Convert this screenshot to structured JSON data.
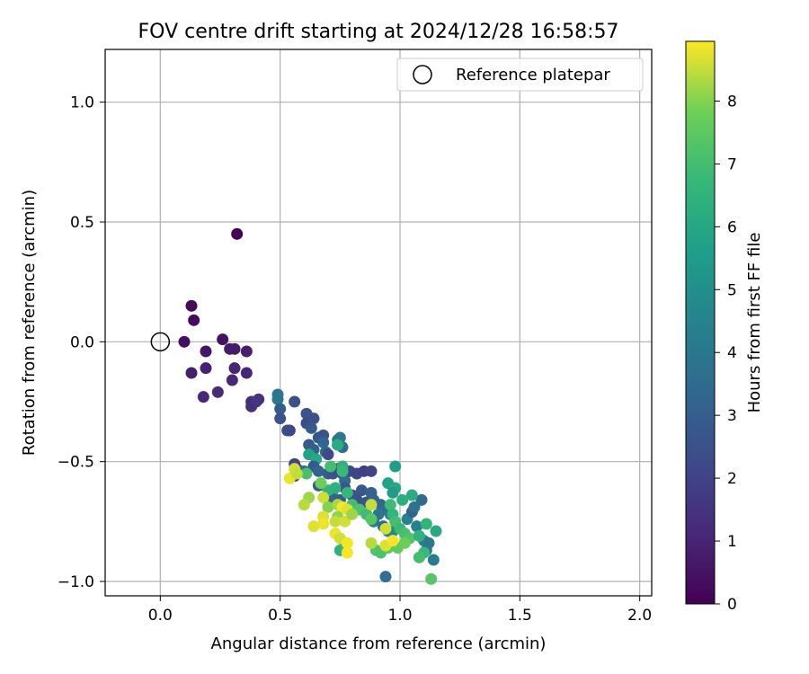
{
  "chart_data": {
    "type": "scatter",
    "title": "FOV centre drift starting at 2024/12/28 16:58:57",
    "xlabel": "Angular distance from reference (arcmin)",
    "ylabel": "Rotation from reference (arcmin)",
    "xlim": [
      -0.23,
      2.05
    ],
    "ylim": [
      -1.06,
      1.22
    ],
    "x_ticks": [
      0.0,
      0.5,
      1.0,
      1.5,
      2.0
    ],
    "x_tick_labels": [
      "0.0",
      "0.5",
      "1.0",
      "1.5",
      "2.0"
    ],
    "y_ticks": [
      1.0,
      0.5,
      0.0,
      -0.5,
      -1.0
    ],
    "y_tick_labels": [
      "1.0",
      "0.5",
      "0.0",
      "−0.5",
      "−1.0"
    ],
    "grid": true,
    "legend": {
      "position": "top-right",
      "label": "Reference platepar"
    },
    "reference_point": {
      "x": 0.0,
      "y": 0.0
    },
    "colorbar": {
      "label": "Hours from first FF file",
      "range": [
        0,
        8.95
      ],
      "ticks": [
        0,
        1,
        2,
        3,
        4,
        5,
        6,
        7,
        8
      ],
      "tick_labels": [
        "0",
        "1",
        "2",
        "3",
        "4",
        "5",
        "6",
        "7",
        "8"
      ],
      "colormap": "viridis"
    },
    "series": [
      {
        "points": [
          [
            0.32,
            0.45,
            0.05
          ],
          [
            0.13,
            0.15,
            0.25
          ],
          [
            0.14,
            0.09,
            0.3
          ],
          [
            0.1,
            0.0,
            0.35
          ],
          [
            0.26,
            0.01,
            0.45
          ],
          [
            0.19,
            -0.04,
            0.6
          ],
          [
            0.29,
            -0.03,
            0.7
          ],
          [
            0.31,
            -0.03,
            0.75
          ],
          [
            0.36,
            -0.04,
            0.85
          ],
          [
            0.13,
            -0.13,
            0.8
          ],
          [
            0.19,
            -0.11,
            0.9
          ],
          [
            0.31,
            -0.11,
            1.0
          ],
          [
            0.36,
            -0.13,
            1.05
          ],
          [
            0.3,
            -0.16,
            1.1
          ],
          [
            0.18,
            -0.23,
            1.15
          ],
          [
            0.24,
            -0.21,
            1.2
          ],
          [
            0.38,
            -0.25,
            1.3
          ],
          [
            0.38,
            -0.27,
            1.35
          ],
          [
            0.41,
            -0.24,
            1.45
          ],
          [
            0.4,
            -0.25,
            1.5
          ]
        ]
      },
      {
        "points": [
          [
            0.49,
            -0.22,
            3.9
          ],
          [
            0.49,
            -0.24,
            4.0
          ],
          [
            0.5,
            -0.28,
            2.9
          ],
          [
            0.5,
            -0.32,
            2.6
          ],
          [
            0.56,
            -0.25,
            2.5
          ],
          [
            0.53,
            -0.37,
            2.3
          ],
          [
            0.54,
            -0.37,
            2.2
          ],
          [
            0.61,
            -0.3,
            2.6
          ],
          [
            0.61,
            -0.34,
            2.4
          ],
          [
            0.64,
            -0.32,
            2.5
          ],
          [
            0.63,
            -0.36,
            2.8
          ],
          [
            0.66,
            -0.4,
            2.7
          ],
          [
            0.68,
            -0.39,
            2.6
          ],
          [
            0.68,
            -0.42,
            3.3
          ],
          [
            0.62,
            -0.43,
            2.9
          ],
          [
            0.64,
            -0.45,
            3.1
          ],
          [
            0.69,
            -0.46,
            3.4
          ],
          [
            0.7,
            -0.47,
            2.2
          ],
          [
            0.74,
            -0.41,
            3.9
          ],
          [
            0.75,
            -0.4,
            4.1
          ],
          [
            0.74,
            -0.43,
            4.6
          ],
          [
            0.76,
            -0.44,
            3.6
          ],
          [
            0.62,
            -0.47,
            5.8
          ],
          [
            0.65,
            -0.49,
            6.0
          ],
          [
            0.56,
            -0.51,
            2.0
          ],
          [
            0.57,
            -0.53,
            1.8
          ],
          [
            0.56,
            -0.56,
            1.9
          ],
          [
            0.64,
            -0.52,
            2.8
          ],
          [
            0.66,
            -0.54,
            3.2
          ],
          [
            0.6,
            -0.54,
            3.6
          ],
          [
            0.7,
            -0.55,
            3.0
          ],
          [
            0.72,
            -0.55,
            2.7
          ],
          [
            0.74,
            -0.53,
            2.5
          ],
          [
            0.76,
            -0.55,
            2.4
          ],
          [
            0.79,
            -0.54,
            2.3
          ],
          [
            0.82,
            -0.55,
            2.1
          ],
          [
            0.85,
            -0.54,
            1.9
          ],
          [
            0.88,
            -0.54,
            2.0
          ],
          [
            0.77,
            -0.58,
            3.5
          ],
          [
            0.66,
            -0.6,
            3.0
          ],
          [
            0.72,
            -0.62,
            2.9
          ],
          [
            0.77,
            -0.61,
            2.7
          ],
          [
            0.8,
            -0.64,
            2.6
          ],
          [
            0.84,
            -0.62,
            2.8
          ],
          [
            0.88,
            -0.63,
            3.1
          ],
          [
            0.72,
            -0.65,
            3.3
          ],
          [
            0.75,
            -0.66,
            3.0
          ],
          [
            0.82,
            -0.66,
            2.5
          ],
          [
            0.86,
            -0.67,
            2.7
          ],
          [
            0.89,
            -0.66,
            3.2
          ],
          [
            0.92,
            -0.68,
            3.4
          ],
          [
            0.94,
            -0.7,
            3.6
          ],
          [
            0.91,
            -0.72,
            3.9
          ],
          [
            0.96,
            -0.72,
            4.0
          ],
          [
            0.89,
            -0.75,
            4.2
          ],
          [
            0.93,
            -0.77,
            3.5
          ],
          [
            0.95,
            -0.79,
            4.3
          ],
          [
            0.97,
            -0.79,
            4.6
          ],
          [
            1.03,
            -0.74,
            4.5
          ],
          [
            1.05,
            -0.71,
            3.2
          ],
          [
            1.09,
            -0.66,
            3.5
          ],
          [
            1.06,
            -0.69,
            3.8
          ],
          [
            1.07,
            -0.77,
            4.4
          ],
          [
            1.1,
            -0.83,
            4.5
          ],
          [
            1.12,
            -0.84,
            4.0
          ],
          [
            1.14,
            -0.91,
            4.2
          ],
          [
            0.94,
            -0.98,
            3.7
          ],
          [
            1.11,
            -0.87,
            3.9
          ]
        ]
      },
      {
        "points": [
          [
            0.74,
            -0.43,
            6.2
          ],
          [
            0.76,
            -0.52,
            6.5
          ],
          [
            0.98,
            -0.52,
            5.6
          ],
          [
            0.95,
            -0.59,
            5.8
          ],
          [
            0.98,
            -0.61,
            6.0
          ],
          [
            0.97,
            -0.63,
            5.5
          ],
          [
            1.01,
            -0.66,
            6.3
          ],
          [
            1.05,
            -0.64,
            6.2
          ],
          [
            0.71,
            -0.52,
            7.0
          ],
          [
            0.76,
            -0.54,
            6.8
          ],
          [
            0.61,
            -0.55,
            7.1
          ],
          [
            0.7,
            -0.62,
            6.6
          ],
          [
            0.73,
            -0.61,
            6.4
          ],
          [
            0.78,
            -0.63,
            6.7
          ],
          [
            0.8,
            -0.68,
            7.0
          ],
          [
            0.83,
            -0.7,
            7.2
          ],
          [
            0.86,
            -0.72,
            6.9
          ],
          [
            0.88,
            -0.74,
            7.4
          ],
          [
            0.96,
            -0.68,
            6.9
          ],
          [
            0.97,
            -0.72,
            6.6
          ],
          [
            0.98,
            -0.75,
            7.0
          ],
          [
            1.0,
            -0.78,
            6.8
          ],
          [
            1.02,
            -0.8,
            7.1
          ],
          [
            1.04,
            -0.82,
            7.3
          ],
          [
            1.08,
            -0.81,
            6.5
          ],
          [
            1.11,
            -0.76,
            6.6
          ],
          [
            1.15,
            -0.79,
            6.1
          ],
          [
            1.1,
            -0.88,
            6.8
          ],
          [
            1.08,
            -0.9,
            7.0
          ],
          [
            0.9,
            -0.87,
            7.3
          ],
          [
            0.92,
            -0.88,
            7.2
          ],
          [
            0.95,
            -0.86,
            7.5
          ],
          [
            0.99,
            -0.86,
            7.6
          ],
          [
            1.02,
            -0.84,
            7.8
          ],
          [
            0.75,
            -0.87,
            6.4
          ],
          [
            0.77,
            -0.85,
            6.7
          ],
          [
            1.13,
            -0.99,
            7.4
          ]
        ]
      },
      {
        "points": [
          [
            0.67,
            -0.59,
            7.8
          ],
          [
            0.68,
            -0.65,
            8.6
          ],
          [
            0.62,
            -0.65,
            8.2
          ],
          [
            0.6,
            -0.68,
            8.4
          ],
          [
            0.7,
            -0.69,
            8.0
          ],
          [
            0.74,
            -0.68,
            8.3
          ],
          [
            0.76,
            -0.69,
            8.9
          ],
          [
            0.78,
            -0.7,
            8.7
          ],
          [
            0.74,
            -0.73,
            8.1
          ],
          [
            0.68,
            -0.73,
            8.7
          ],
          [
            0.73,
            -0.75,
            8.5
          ],
          [
            0.68,
            -0.76,
            8.8
          ],
          [
            0.77,
            -0.75,
            8.6
          ],
          [
            0.64,
            -0.77,
            8.7
          ],
          [
            0.73,
            -0.8,
            8.8
          ],
          [
            0.75,
            -0.82,
            8.6
          ],
          [
            0.78,
            -0.84,
            8.9
          ],
          [
            0.78,
            -0.88,
            8.9
          ],
          [
            0.56,
            -0.53,
            8.6
          ],
          [
            0.54,
            -0.57,
            8.8
          ],
          [
            0.57,
            -0.55,
            8.5
          ],
          [
            0.88,
            -0.84,
            8.4
          ],
          [
            0.94,
            -0.78,
            8.6
          ],
          [
            0.94,
            -0.85,
            8.7
          ],
          [
            0.97,
            -0.83,
            8.9
          ],
          [
            0.88,
            -0.68,
            8.5
          ],
          [
            0.8,
            -0.72,
            8.2
          ]
        ]
      }
    ]
  }
}
